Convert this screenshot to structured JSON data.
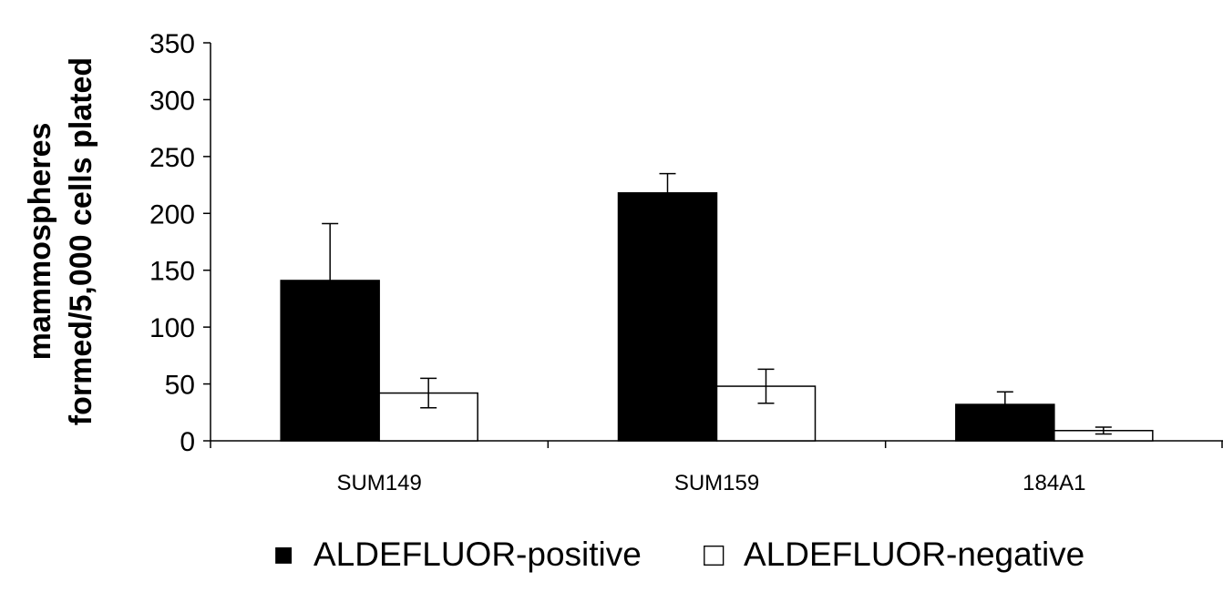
{
  "chart_data": {
    "type": "bar",
    "title": "",
    "xlabel": "",
    "ylabel_lines": [
      "mammospheres",
      "formed/5,000 cells plated"
    ],
    "ylim": [
      0,
      350
    ],
    "yticks": [
      0,
      50,
      100,
      150,
      200,
      250,
      300,
      350
    ],
    "categories": [
      "SUM149",
      "SUM159",
      "184A1"
    ],
    "series": [
      {
        "name": "ALDEFLUOR-positive",
        "fill": "#000000",
        "values": [
          141,
          218,
          32
        ],
        "errors": [
          50,
          17,
          11
        ]
      },
      {
        "name": "ALDEFLUOR-negative",
        "fill": "#ffffff",
        "values": [
          42,
          48,
          9
        ],
        "errors": [
          13,
          15,
          3
        ]
      }
    ],
    "grid": false,
    "legend_position": "bottom-center",
    "legend_symbols": [
      "■",
      "□"
    ]
  }
}
